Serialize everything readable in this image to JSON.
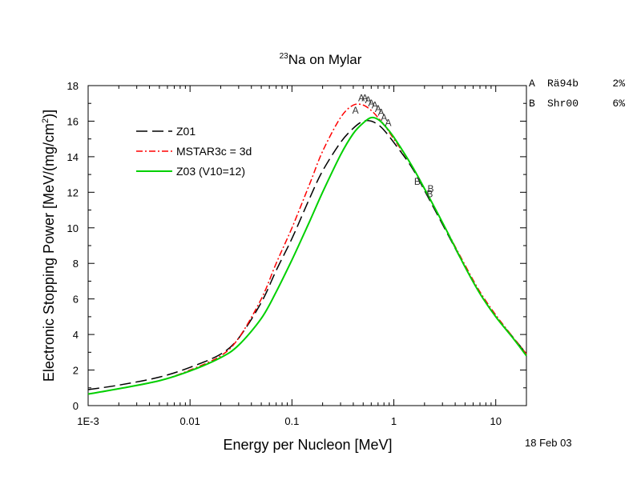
{
  "chart_data": {
    "type": "line",
    "title_sup": "23",
    "title_main": "Na on Mylar",
    "xlabel": "Energy per Nucleon [MeV]",
    "ylabel_main": "Electronic Stopping Power [MeV/(mg/cm",
    "ylabel_sup": "2",
    "ylabel_end": ")]",
    "x_scale": "log",
    "xlim": [
      0.001,
      20
    ],
    "ylim": [
      0,
      18
    ],
    "x_ticks": [
      {
        "value": 0.001,
        "label": "1E-3"
      },
      {
        "value": 0.01,
        "label": "0.01"
      },
      {
        "value": 0.1,
        "label": "0.1"
      },
      {
        "value": 1,
        "label": "1"
      },
      {
        "value": 10,
        "label": "10"
      }
    ],
    "y_ticks": [
      {
        "value": 0,
        "label": "0"
      },
      {
        "value": 2,
        "label": "2"
      },
      {
        "value": 4,
        "label": "4"
      },
      {
        "value": 6,
        "label": "6"
      },
      {
        "value": 8,
        "label": "8"
      },
      {
        "value": 10,
        "label": "10"
      },
      {
        "value": 12,
        "label": "12"
      },
      {
        "value": 14,
        "label": "14"
      },
      {
        "value": 16,
        "label": "16"
      },
      {
        "value": 18,
        "label": "18"
      }
    ],
    "legend_position": "upper-left",
    "series": [
      {
        "name": "Z01",
        "color": "#000000",
        "style": "dashed",
        "x": [
          0.001,
          0.002,
          0.005,
          0.01,
          0.02,
          0.03,
          0.05,
          0.07,
          0.1,
          0.15,
          0.2,
          0.3,
          0.4,
          0.5,
          0.6,
          0.7,
          0.8,
          1.0,
          1.5,
          2,
          3,
          5,
          7,
          10,
          15,
          20
        ],
        "y": [
          0.9,
          1.15,
          1.6,
          2.15,
          2.9,
          3.8,
          5.8,
          7.6,
          9.4,
          11.7,
          13.2,
          14.8,
          15.6,
          16.0,
          16.0,
          15.8,
          15.5,
          14.8,
          13.4,
          12.1,
          10.2,
          7.8,
          6.3,
          5.0,
          3.8,
          2.9
        ]
      },
      {
        "name": "MSTAR3c = 3d",
        "color": "#ff0000",
        "style": "dashdot",
        "x": [
          0.001,
          0.002,
          0.005,
          0.01,
          0.02,
          0.03,
          0.05,
          0.07,
          0.1,
          0.15,
          0.2,
          0.3,
          0.4,
          0.5,
          0.6,
          0.7,
          0.8,
          1.0,
          1.5,
          2,
          3,
          5,
          7,
          10,
          15,
          20
        ],
        "y": [
          0.65,
          0.95,
          1.4,
          2.0,
          2.8,
          3.8,
          6.0,
          8.0,
          10.0,
          12.5,
          14.3,
          16.2,
          16.9,
          16.9,
          16.6,
          16.2,
          15.8,
          15.0,
          13.5,
          12.2,
          10.3,
          7.9,
          6.4,
          5.1,
          3.8,
          2.9
        ]
      },
      {
        "name": "Z03 (V10=12)",
        "color": "#00d000",
        "style": "solid",
        "x": [
          0.001,
          0.002,
          0.005,
          0.01,
          0.02,
          0.03,
          0.05,
          0.07,
          0.1,
          0.15,
          0.2,
          0.3,
          0.4,
          0.5,
          0.6,
          0.7,
          0.8,
          1.0,
          1.5,
          2,
          3,
          5,
          7,
          10,
          15,
          20
        ],
        "y": [
          0.65,
          0.95,
          1.4,
          1.95,
          2.7,
          3.4,
          4.9,
          6.4,
          8.2,
          10.4,
          12.0,
          14.1,
          15.3,
          15.9,
          16.2,
          16.1,
          15.8,
          15.1,
          13.5,
          12.2,
          10.3,
          7.8,
          6.3,
          5.0,
          3.75,
          2.8
        ]
      }
    ],
    "experimental_points": [
      {
        "label": "A",
        "x": 0.42,
        "y": 16.6
      },
      {
        "label": "A",
        "x": 0.48,
        "y": 17.3
      },
      {
        "label": "A",
        "x": 0.52,
        "y": 17.3
      },
      {
        "label": "A",
        "x": 0.56,
        "y": 17.2
      },
      {
        "label": "A",
        "x": 0.6,
        "y": 17.0
      },
      {
        "label": "A",
        "x": 0.65,
        "y": 16.9
      },
      {
        "label": "A",
        "x": 0.7,
        "y": 16.7
      },
      {
        "label": "A",
        "x": 0.75,
        "y": 16.5
      },
      {
        "label": "A",
        "x": 0.8,
        "y": 16.2
      },
      {
        "label": "A",
        "x": 0.88,
        "y": 15.9
      },
      {
        "label": "B",
        "x": 1.7,
        "y": 12.6
      },
      {
        "label": "B",
        "x": 2.3,
        "y": 12.2
      },
      {
        "label": "B",
        "x": 2.25,
        "y": 11.9
      }
    ],
    "references": [
      {
        "letter": "A",
        "name": "Rä94b",
        "error": "2%"
      },
      {
        "letter": "B",
        "name": "Shr00",
        "error": "6%"
      }
    ],
    "date": "18 Feb 03"
  }
}
